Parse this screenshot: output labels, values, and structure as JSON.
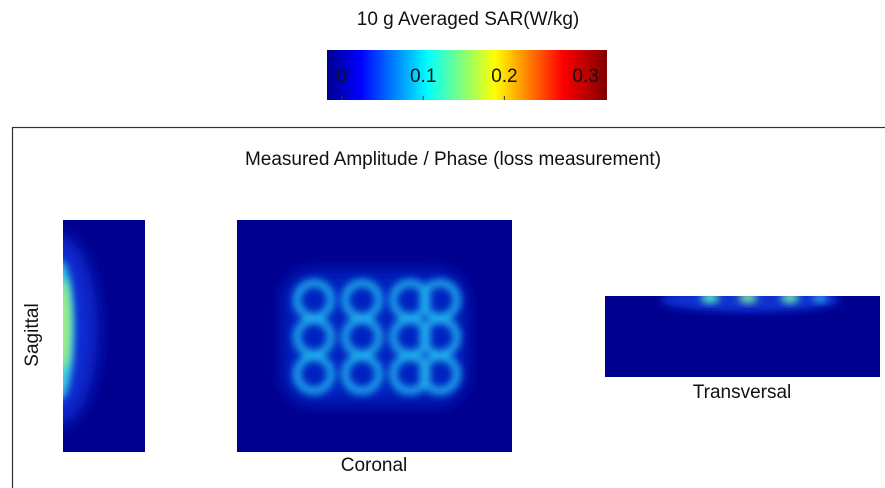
{
  "colorbar": {
    "title": "10 g Averaged SAR(W/kg)",
    "ticks": [
      0,
      0.1,
      0.2,
      0.3
    ]
  },
  "panel": {
    "title": "Measured Amplitude / Phase (loss measurement)",
    "views": {
      "sagittal": "Sagittal",
      "coronal": "Coronal",
      "transversal": "Transversal"
    }
  }
}
